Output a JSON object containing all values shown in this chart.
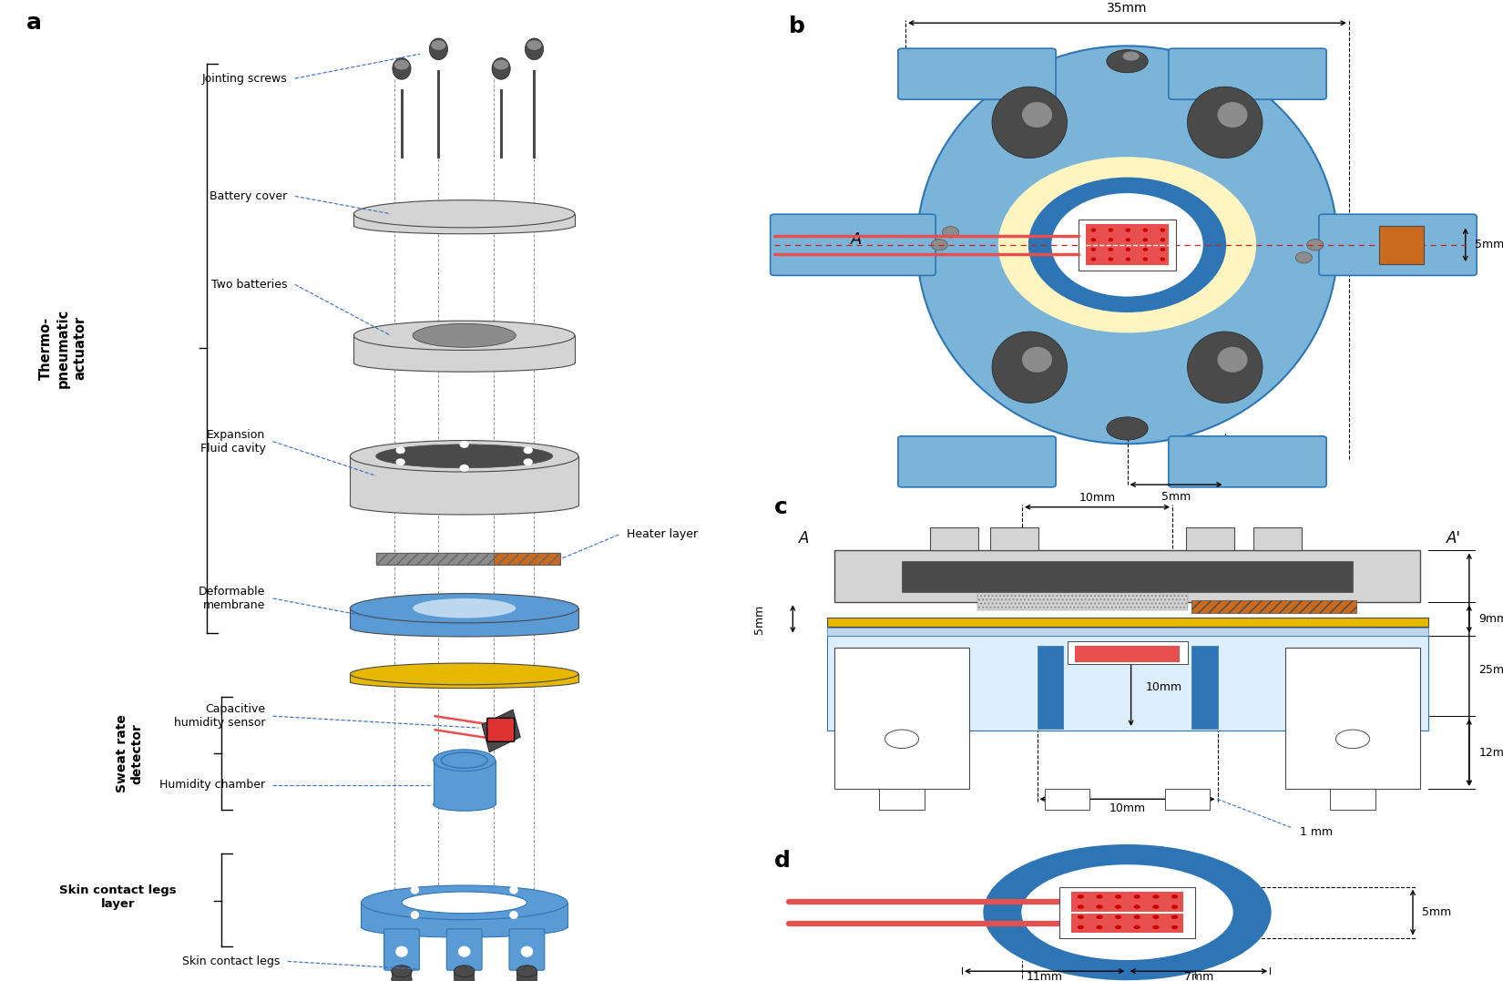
{
  "colors": {
    "blue_body": "#7AB4D8",
    "blue_dark": "#2E75B6",
    "blue_light": "#BDD7EE",
    "blue_mid": "#5B9BD5",
    "gray_light": "#D4D4D4",
    "gray_mid": "#8C8C8C",
    "gray_dark": "#4A4A4A",
    "yellow_gold": "#E6B800",
    "orange": "#C96A1E",
    "red_sensor": "#E85050",
    "red_dots": "#CC0000",
    "white": "#FFFFFF",
    "black": "#000000",
    "cream": "#FFF5C0",
    "dashed_blue": "#4472C4"
  },
  "labels": {
    "jointing_screws": "Jointing screws",
    "battery_cover": "Battery cover",
    "two_batteries": "Two batteries",
    "expansion": "Expansion\nFluid cavity",
    "heater_layer": "Heater layer",
    "deformable": "Deformable\nmembrane",
    "capacitive": "Capacitive\nhumidity sensor",
    "humidity_chamber": "Humidity chamber",
    "skin_contact_legs": "Skin contact legs"
  }
}
